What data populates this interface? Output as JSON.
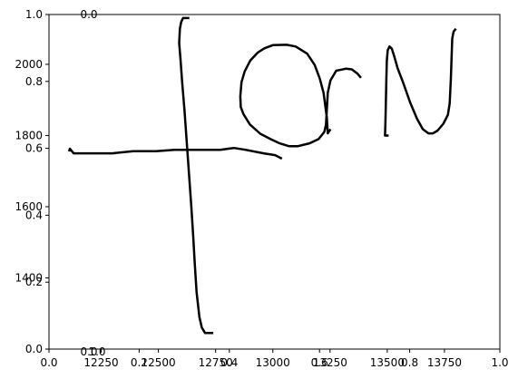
{
  "chart_data": {
    "type": "line",
    "title": "",
    "xlabel": "",
    "ylabel": "",
    "grid": false,
    "legend": "none",
    "colors": {
      "line": "#000000",
      "axes": "#000000",
      "background": "#ffffff"
    },
    "axes_primary": {
      "xlim": [
        0.0,
        1.0
      ],
      "ylim": [
        0.0,
        1.0
      ],
      "xticks": [
        "0.0",
        "0.2",
        "0.4",
        "0.6",
        "0.8",
        "1.0"
      ],
      "yticks": [
        "0.0",
        "0.2",
        "0.4",
        "0.6",
        "0.8",
        "1.0"
      ]
    },
    "axes_secondary": {
      "xlim": [
        12022,
        13992
      ],
      "ylim": [
        1200,
        2140
      ],
      "xticks": [
        "12250",
        "12500",
        "12750",
        "13000",
        "13250",
        "13500",
        "13750"
      ],
      "yticks": [
        "1400",
        "1600",
        "1800",
        "2000"
      ]
    },
    "axes_tertiary": {
      "xticks_bottom": [
        "0.0",
        "1.0"
      ],
      "xticks_top": [
        "0.0"
      ]
    },
    "series": [
      {
        "points": [
          [
            12110,
            1755
          ],
          [
            12113,
            1763
          ],
          [
            12130,
            1750
          ],
          [
            12200,
            1750
          ],
          [
            12300,
            1750
          ],
          [
            12390,
            1756
          ],
          [
            12490,
            1756
          ],
          [
            12570,
            1760
          ],
          [
            12700,
            1760
          ],
          [
            12770,
            1760
          ],
          [
            12830,
            1765
          ],
          [
            12880,
            1760
          ],
          [
            12960,
            1750
          ],
          [
            13010,
            1745
          ],
          [
            13040,
            1735
          ]
        ]
      },
      {
        "points": [
          [
            12635,
            2130
          ],
          [
            12608,
            2130
          ],
          [
            12600,
            2120
          ],
          [
            12594,
            2100
          ],
          [
            12591,
            2060
          ],
          [
            12596,
            2020
          ],
          [
            12604,
            1950
          ],
          [
            12614,
            1870
          ],
          [
            12624,
            1780
          ],
          [
            12634,
            1690
          ],
          [
            12644,
            1600
          ],
          [
            12652,
            1520
          ],
          [
            12659,
            1440
          ],
          [
            12667,
            1360
          ],
          [
            12679,
            1290
          ],
          [
            12690,
            1260
          ],
          [
            12704,
            1245
          ],
          [
            12740,
            1245
          ]
        ]
      },
      {
        "points": [
          [
            13252,
            1818
          ],
          [
            13240,
            1806
          ],
          [
            13236,
            1850
          ],
          [
            13222,
            1920
          ],
          [
            13205,
            1960
          ],
          [
            13183,
            1998
          ],
          [
            13150,
            2030
          ],
          [
            13100,
            2050
          ],
          [
            13060,
            2055
          ],
          [
            13000,
            2054
          ],
          [
            12963,
            2045
          ],
          [
            12934,
            2033
          ],
          [
            12902,
            2011
          ],
          [
            12877,
            1980
          ],
          [
            12863,
            1950
          ],
          [
            12858,
            1910
          ],
          [
            12860,
            1880
          ],
          [
            12872,
            1860
          ],
          [
            12900,
            1831
          ],
          [
            12945,
            1805
          ],
          [
            12990,
            1790
          ],
          [
            13030,
            1778
          ],
          [
            13070,
            1770
          ],
          [
            13110,
            1770
          ],
          [
            13160,
            1778
          ],
          [
            13200,
            1790
          ],
          [
            13225,
            1810
          ],
          [
            13232,
            1830
          ],
          [
            13235,
            1860
          ],
          [
            13240,
            1920
          ],
          [
            13252,
            1955
          ],
          [
            13277,
            1982
          ],
          [
            13300,
            1985
          ],
          [
            13320,
            1988
          ],
          [
            13345,
            1986
          ],
          [
            13370,
            1974
          ],
          [
            13385,
            1962
          ]
        ]
      },
      {
        "points": [
          [
            13506,
            1800
          ],
          [
            13490,
            1800
          ],
          [
            13492,
            1840
          ],
          [
            13494,
            1900
          ],
          [
            13496,
            1960
          ],
          [
            13498,
            2010
          ],
          [
            13502,
            2040
          ],
          [
            13510,
            2050
          ],
          [
            13520,
            2044
          ],
          [
            13530,
            2024
          ],
          [
            13545,
            1990
          ],
          [
            13570,
            1948
          ],
          [
            13600,
            1893
          ],
          [
            13630,
            1847
          ],
          [
            13655,
            1818
          ],
          [
            13680,
            1806
          ],
          [
            13700,
            1806
          ],
          [
            13720,
            1814
          ],
          [
            13745,
            1833
          ],
          [
            13765,
            1858
          ],
          [
            13773,
            1890
          ],
          [
            13778,
            1960
          ],
          [
            13781,
            2020
          ],
          [
            13784,
            2072
          ],
          [
            13790,
            2092
          ],
          [
            13800,
            2100
          ]
        ]
      }
    ]
  }
}
